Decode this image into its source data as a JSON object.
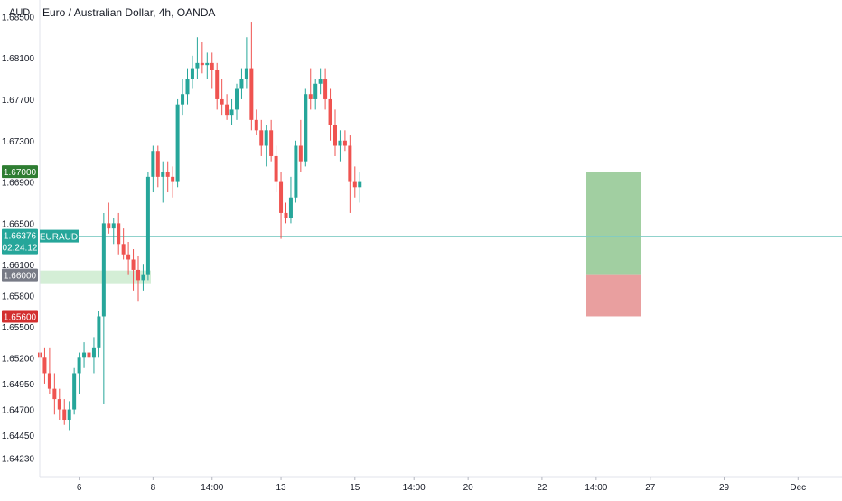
{
  "header": {
    "currency": "AUD",
    "title": "Euro / Australian Dollar, 4h, OANDA"
  },
  "price_badges": {
    "current_symbol": "EURAUD",
    "current_price": "1.66376",
    "countdown": "02:24:12",
    "target_price": "1.67000",
    "entry_price": "1.66000",
    "stop_price": "1.65600"
  },
  "colors": {
    "up": "#26a69a",
    "down": "#ef5350",
    "target_badge": "#2e7d32",
    "stop_badge": "#d32f2f",
    "entry_badge": "#787b86",
    "profit_zone": "#9ccc9c",
    "loss_zone": "#e89a9a",
    "entry_zone": "#d4eed6",
    "current_line": "#80cbc4"
  },
  "chart_data": {
    "type": "candlestick",
    "title": "Euro / Australian Dollar, 4h, OANDA",
    "symbol": "EURAUD",
    "ylim": [
      1.6405,
      1.6866
    ],
    "y_ticks": [
      "1.68500",
      "1.68100",
      "1.67700",
      "1.67300",
      "1.66900",
      "1.66500",
      "1.66100",
      "1.65800",
      "1.65500",
      "1.65200",
      "1.64950",
      "1.64700",
      "1.64450",
      "1.64230"
    ],
    "x_ticks": [
      {
        "label": "6",
        "index": 8
      },
      {
        "label": "8",
        "index": 23
      },
      {
        "label": "14:00",
        "index": 35
      },
      {
        "label": "13",
        "index": 49
      },
      {
        "label": "15",
        "index": 64
      },
      {
        "label": "14:00",
        "index": 76
      },
      {
        "label": "20",
        "index": 87
      },
      {
        "label": "22",
        "index": 102
      },
      {
        "label": "14:00",
        "index": 113
      },
      {
        "label": "27",
        "index": 124
      },
      {
        "label": "29",
        "index": 139
      },
      {
        "label": "Dec",
        "index": 154
      }
    ],
    "candles": [
      [
        1.6525,
        1.653,
        1.651,
        1.652
      ],
      [
        1.652,
        1.653,
        1.6495,
        1.6505
      ],
      [
        1.6505,
        1.653,
        1.6485,
        1.649
      ],
      [
        1.649,
        1.6505,
        1.6465,
        1.648
      ],
      [
        1.648,
        1.649,
        1.646,
        1.647
      ],
      [
        1.647,
        1.648,
        1.6455,
        1.646
      ],
      [
        1.646,
        1.6478,
        1.645,
        1.647
      ],
      [
        1.647,
        1.651,
        1.6465,
        1.6505
      ],
      [
        1.6505,
        1.6525,
        1.6485,
        1.652
      ],
      [
        1.652,
        1.6535,
        1.651,
        1.6525
      ],
      [
        1.6525,
        1.6545,
        1.6515,
        1.652
      ],
      [
        1.652,
        1.654,
        1.6505,
        1.653
      ],
      [
        1.653,
        1.6565,
        1.652,
        1.656
      ],
      [
        1.656,
        1.666,
        1.6475,
        1.665
      ],
      [
        1.665,
        1.667,
        1.664,
        1.6645
      ],
      [
        1.6645,
        1.6655,
        1.663,
        1.665
      ],
      [
        1.665,
        1.666,
        1.662,
        1.663
      ],
      [
        1.663,
        1.6645,
        1.6615,
        1.662
      ],
      [
        1.662,
        1.6632,
        1.66,
        1.6615
      ],
      [
        1.6615,
        1.6625,
        1.6585,
        1.6605
      ],
      [
        1.6605,
        1.6618,
        1.6575,
        1.6595
      ],
      [
        1.6595,
        1.661,
        1.6585,
        1.66
      ],
      [
        1.66,
        1.67,
        1.6595,
        1.6695
      ],
      [
        1.6695,
        1.6725,
        1.668,
        1.672
      ],
      [
        1.672,
        1.6725,
        1.6685,
        1.6695
      ],
      [
        1.6695,
        1.671,
        1.667,
        1.67
      ],
      [
        1.67,
        1.671,
        1.668,
        1.6695
      ],
      [
        1.6695,
        1.6705,
        1.6675,
        1.669
      ],
      [
        1.669,
        1.677,
        1.6685,
        1.6765
      ],
      [
        1.6765,
        1.679,
        1.6755,
        1.6775
      ],
      [
        1.6775,
        1.68,
        1.6765,
        1.679
      ],
      [
        1.679,
        1.6812,
        1.678,
        1.68
      ],
      [
        1.68,
        1.683,
        1.679,
        1.6805
      ],
      [
        1.6805,
        1.6825,
        1.6795,
        1.6803
      ],
      [
        1.6803,
        1.6815,
        1.679,
        1.6805
      ],
      [
        1.6805,
        1.6815,
        1.678,
        1.6798
      ],
      [
        1.6798,
        1.6805,
        1.676,
        1.677
      ],
      [
        1.677,
        1.679,
        1.6755,
        1.6765
      ],
      [
        1.6765,
        1.6775,
        1.675,
        1.6755
      ],
      [
        1.6755,
        1.677,
        1.6745,
        1.676
      ],
      [
        1.676,
        1.6785,
        1.675,
        1.678
      ],
      [
        1.678,
        1.68,
        1.677,
        1.679
      ],
      [
        1.679,
        1.683,
        1.678,
        1.68
      ],
      [
        1.68,
        1.6845,
        1.674,
        1.675
      ],
      [
        1.675,
        1.676,
        1.6735,
        1.674
      ],
      [
        1.674,
        1.675,
        1.6715,
        1.6725
      ],
      [
        1.6725,
        1.6745,
        1.6705,
        1.674
      ],
      [
        1.674,
        1.675,
        1.671,
        1.6715
      ],
      [
        1.6715,
        1.6725,
        1.668,
        1.669
      ],
      [
        1.669,
        1.67,
        1.6635,
        1.666
      ],
      [
        1.666,
        1.667,
        1.665,
        1.6655
      ],
      [
        1.6655,
        1.6695,
        1.665,
        1.6675
      ],
      [
        1.6675,
        1.673,
        1.667,
        1.6725
      ],
      [
        1.6725,
        1.675,
        1.67,
        1.671
      ],
      [
        1.671,
        1.678,
        1.6705,
        1.6775
      ],
      [
        1.6775,
        1.68,
        1.676,
        1.677
      ],
      [
        1.677,
        1.679,
        1.676,
        1.6785
      ],
      [
        1.6785,
        1.68,
        1.6775,
        1.679
      ],
      [
        1.679,
        1.68,
        1.676,
        1.677
      ],
      [
        1.677,
        1.678,
        1.673,
        1.6745
      ],
      [
        1.6745,
        1.676,
        1.6715,
        1.6725
      ],
      [
        1.6725,
        1.674,
        1.671,
        1.673
      ],
      [
        1.673,
        1.674,
        1.672,
        1.6725
      ],
      [
        1.6725,
        1.6735,
        1.666,
        1.669
      ],
      [
        1.669,
        1.6705,
        1.6675,
        1.6685
      ],
      [
        1.6685,
        1.67,
        1.667,
        1.669
      ]
    ],
    "risk_reward": {
      "entry": 1.66,
      "target": 1.67,
      "stop": 1.656
    },
    "current_price": 1.66376
  }
}
